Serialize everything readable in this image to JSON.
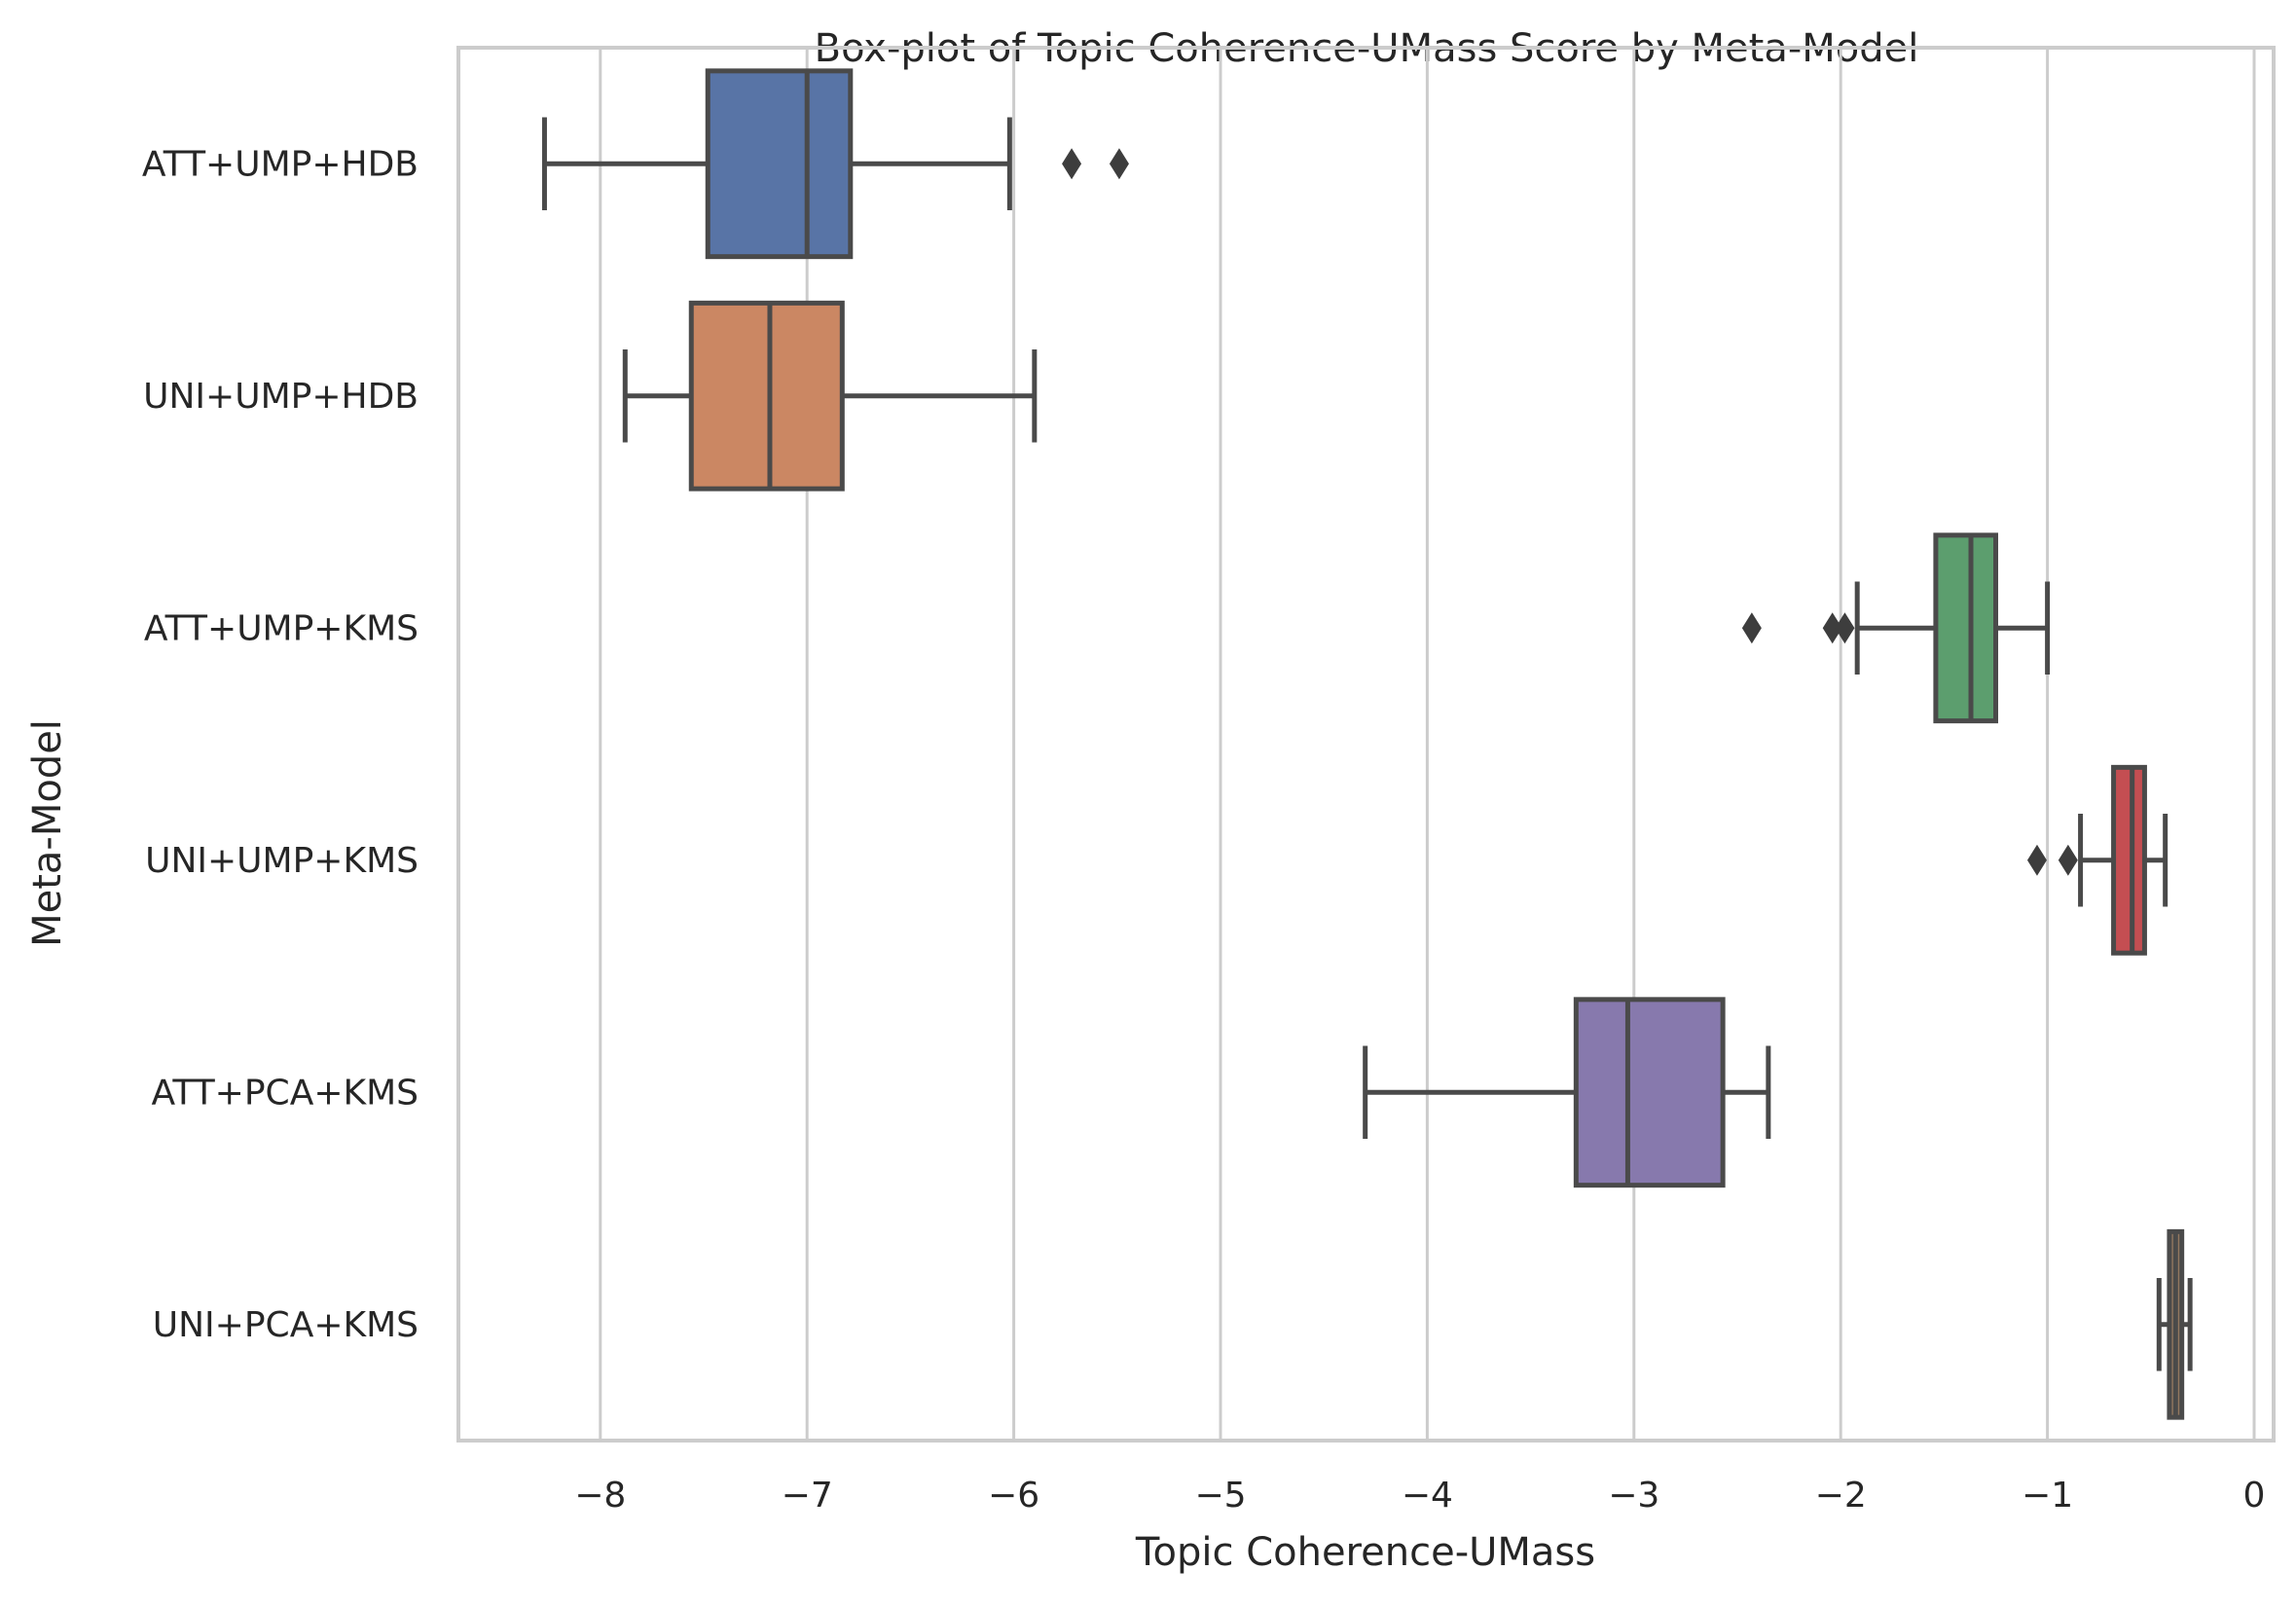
{
  "chart_data": {
    "type": "boxplot",
    "orientation": "horizontal",
    "title": "Box-plot of Topic Coherence-UMass Score by Meta-Model",
    "xlabel": "Topic Coherence-UMass",
    "ylabel": "Meta-Model",
    "xlim": [
      -8.7,
      0.1
    ],
    "xticks": [
      -8,
      -7,
      -6,
      -5,
      -4,
      -3,
      -2,
      -1,
      0
    ],
    "xtick_labels": [
      "−8",
      "−7",
      "−6",
      "−5",
      "−4",
      "−3",
      "−2",
      "−1",
      "0"
    ],
    "grid": "vertical",
    "legend": "none",
    "categories": [
      "ATT+UMP+HDB",
      "UNI+UMP+HDB",
      "ATT+UMP+KMS",
      "UNI+UMP+KMS",
      "ATT+PCA+KMS",
      "UNI+PCA+KMS"
    ],
    "boxes": [
      {
        "category": "ATT+UMP+HDB",
        "whisker_low": -8.27,
        "q1": -7.48,
        "median": -7.0,
        "q3": -6.79,
        "whisker_high": -6.02,
        "outliers": [
          -5.72,
          -5.49
        ],
        "color": "#5874a6"
      },
      {
        "category": "UNI+UMP+HDB",
        "whisker_low": -7.88,
        "q1": -7.56,
        "median": -7.18,
        "q3": -6.83,
        "whisker_high": -5.9,
        "outliers": [],
        "color": "#cb8763"
      },
      {
        "category": "ATT+UMP+KMS",
        "whisker_low": -1.92,
        "q1": -1.54,
        "median": -1.37,
        "q3": -1.25,
        "whisker_high": -1.0,
        "outliers": [
          -2.43,
          -2.04,
          -1.98
        ],
        "color": "#5c9e6e"
      },
      {
        "category": "UNI+UMP+KMS",
        "whisker_low": -0.84,
        "q1": -0.68,
        "median": -0.59,
        "q3": -0.53,
        "whisker_high": -0.43,
        "outliers": [
          -1.05,
          -0.9
        ],
        "color": "#c44e52"
      },
      {
        "category": "ATT+PCA+KMS",
        "whisker_low": -4.3,
        "q1": -3.28,
        "median": -3.03,
        "q3": -2.57,
        "whisker_high": -2.35,
        "outliers": [],
        "color": "#8779ad"
      },
      {
        "category": "UNI+PCA+KMS",
        "whisker_low": -0.46,
        "q1": -0.41,
        "median": -0.38,
        "q3": -0.35,
        "whisker_high": -0.31,
        "outliers": [],
        "color": "#937860"
      }
    ]
  }
}
